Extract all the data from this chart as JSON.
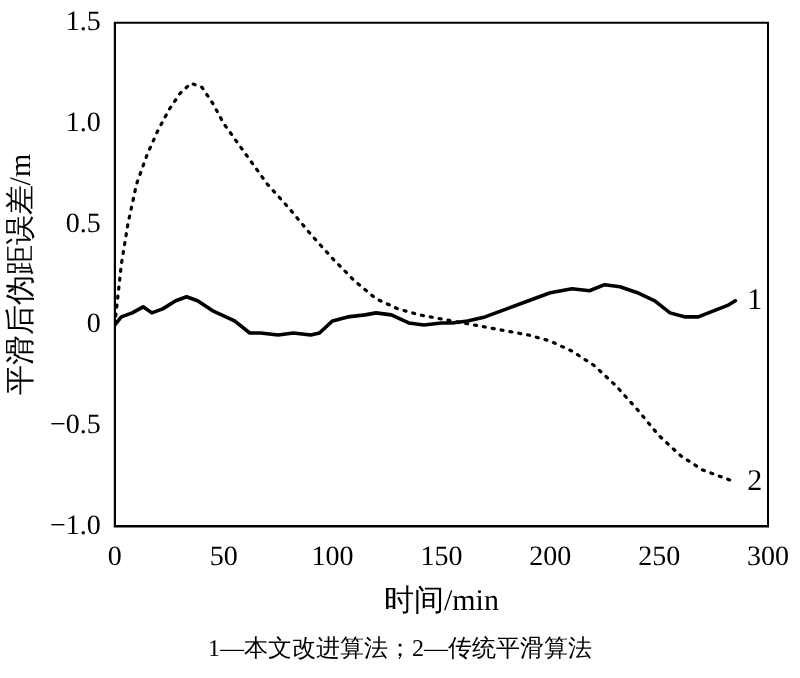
{
  "chart_data": {
    "type": "line",
    "xlabel": "时间/min",
    "ylabel": "平滑后伪距误差/m",
    "xlim": [
      0,
      300
    ],
    "xticks": [
      0,
      50,
      100,
      150,
      200,
      250,
      300
    ],
    "ylim": [
      -1.0,
      1.5
    ],
    "yticks": [
      {
        "value": -1.0,
        "label": "−1.0"
      },
      {
        "value": -0.5,
        "label": "−0.5"
      },
      0,
      {
        "value": 0.5,
        "label": "0.5"
      },
      {
        "value": 1.0,
        "label": "1.0"
      },
      {
        "value": 1.5,
        "label": "1.5"
      }
    ],
    "grid": false,
    "legend": false,
    "annotations": [
      "1—本文改进算法；2—传统平滑算法"
    ],
    "series": [
      {
        "name": "1",
        "color": "#000000",
        "line_style": "solid",
        "x": [
          0,
          3,
          8,
          13,
          17,
          22,
          28,
          33,
          38,
          45,
          55,
          62,
          67,
          75,
          82,
          90,
          94,
          100,
          107,
          115,
          120,
          127,
          135,
          142,
          150,
          155,
          162,
          170,
          180,
          190,
          200,
          210,
          218,
          225,
          232,
          240,
          248,
          255,
          262,
          268,
          275,
          282,
          285
        ],
        "values": [
          0.0,
          0.04,
          0.06,
          0.09,
          0.06,
          0.08,
          0.12,
          0.14,
          0.12,
          0.07,
          0.02,
          -0.04,
          -0.04,
          -0.05,
          -0.04,
          -0.05,
          -0.04,
          0.02,
          0.04,
          0.05,
          0.06,
          0.05,
          0.01,
          0.0,
          0.01,
          0.01,
          0.02,
          0.04,
          0.08,
          0.12,
          0.16,
          0.18,
          0.17,
          0.2,
          0.19,
          0.16,
          0.12,
          0.06,
          0.04,
          0.04,
          0.07,
          0.1,
          0.12
        ]
      },
      {
        "name": "2",
        "color": "#000000",
        "line_style": "dotted",
        "x": [
          0,
          3,
          6,
          10,
          15,
          20,
          25,
          30,
          35,
          40,
          45,
          50,
          60,
          70,
          80,
          90,
          100,
          110,
          120,
          130,
          140,
          150,
          160,
          170,
          180,
          190,
          200,
          210,
          220,
          230,
          240,
          250,
          260,
          270,
          280,
          285
        ],
        "values": [
          0.0,
          0.3,
          0.5,
          0.7,
          0.85,
          0.97,
          1.07,
          1.15,
          1.2,
          1.18,
          1.1,
          1.0,
          0.85,
          0.7,
          0.58,
          0.45,
          0.33,
          0.22,
          0.13,
          0.08,
          0.05,
          0.03,
          0.01,
          -0.01,
          -0.03,
          -0.05,
          -0.08,
          -0.13,
          -0.2,
          -0.3,
          -0.42,
          -0.55,
          -0.65,
          -0.72,
          -0.76,
          -0.78
        ]
      }
    ]
  }
}
